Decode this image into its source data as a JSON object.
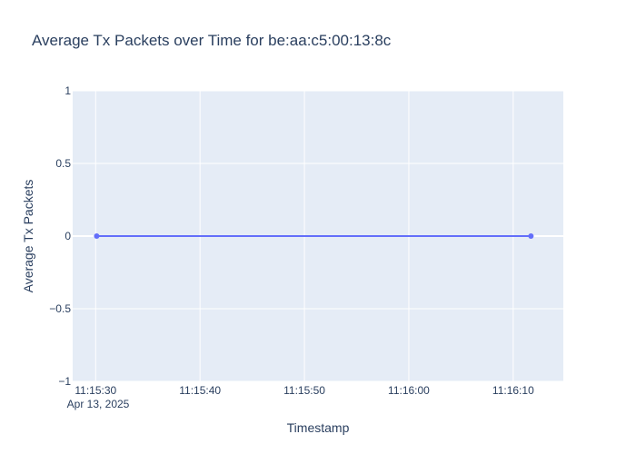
{
  "chart_data": {
    "type": "line",
    "title": "Average Tx Packets over Time for be:aa:c5:00:13:8c",
    "xlabel": "Timestamp",
    "ylabel": "Average Tx Packets",
    "x_tick_labels": [
      "11:15:30",
      "11:15:40",
      "11:15:50",
      "11:16:00",
      "11:16:10"
    ],
    "x_tick_values_s": [
      0,
      10,
      20,
      30,
      40
    ],
    "x_date_label": "Apr 13, 2025",
    "x_range_s": [
      -2.2,
      44.8
    ],
    "y_tick_labels": [
      "1",
      "0.5",
      "0",
      "−0.5",
      "−1"
    ],
    "y_tick_values": [
      1,
      0.5,
      0,
      -0.5,
      -1
    ],
    "ylim": [
      -1,
      1
    ],
    "series": [
      {
        "name": "Average Tx Packets",
        "color": "#636efa",
        "x_labels": [
          "11:15:30",
          "11:16:11.6"
        ],
        "x_s": [
          0.1,
          41.7
        ],
        "y": [
          0,
          0
        ]
      }
    ],
    "colors": {
      "plot_bg": "#e5ecf6",
      "grid": "#ffffff",
      "text": "#2a3f5f"
    }
  }
}
